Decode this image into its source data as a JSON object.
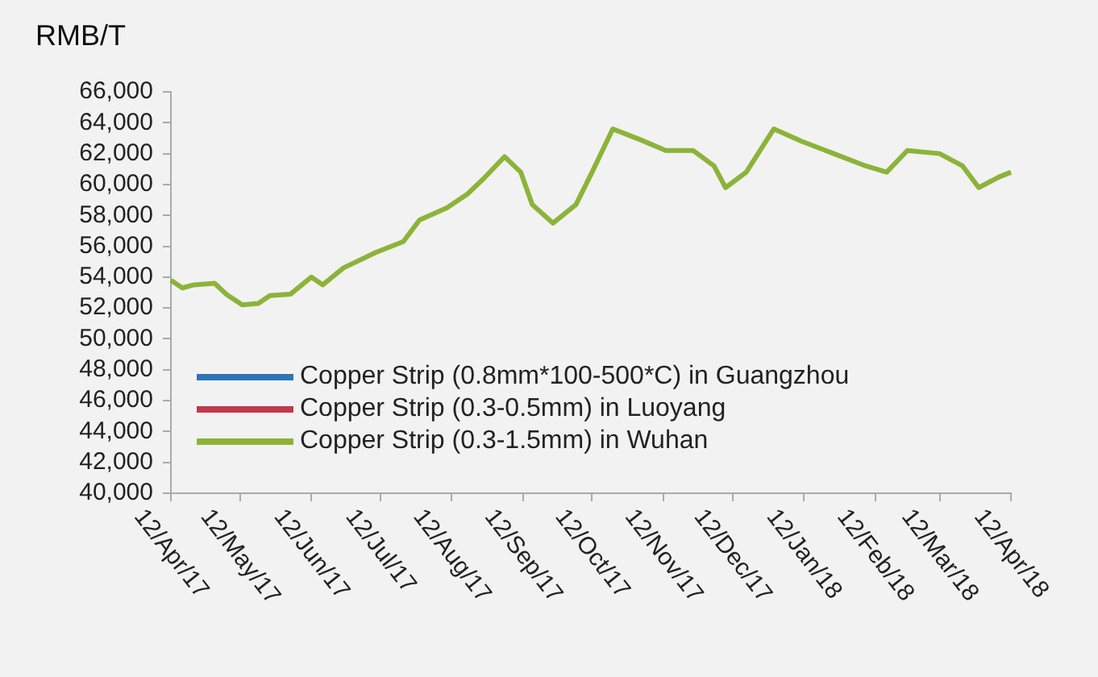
{
  "chart_data": {
    "type": "line",
    "ylabel": "RMB/T",
    "x": [
      "2017-04-12",
      "2017-04-17",
      "2017-04-22",
      "2017-05-01",
      "2017-05-06",
      "2017-05-13",
      "2017-05-20",
      "2017-05-25",
      "2017-06-03",
      "2017-06-12",
      "2017-06-17",
      "2017-06-26",
      "2017-07-10",
      "2017-07-22",
      "2017-07-29",
      "2017-08-10",
      "2017-08-19",
      "2017-08-26",
      "2017-09-04",
      "2017-09-11",
      "2017-09-16",
      "2017-09-25",
      "2017-10-05",
      "2017-10-12",
      "2017-10-21",
      "2017-11-02",
      "2017-11-13",
      "2017-11-25",
      "2017-12-04",
      "2017-12-09",
      "2017-12-18",
      "2017-12-30",
      "2018-01-11",
      "2018-01-25",
      "2018-02-08",
      "2018-02-17",
      "2018-02-26",
      "2018-03-12",
      "2018-03-22",
      "2018-03-29",
      "2018-04-07",
      "2018-04-12"
    ],
    "series": [
      {
        "name": "Copper Strip (0.8mm*100-500*C) in Guangzhou",
        "color": "#2e75b6",
        "values": [
          null,
          null,
          null,
          null,
          null,
          null,
          null,
          null,
          null,
          null,
          null,
          null,
          null,
          null,
          null,
          null,
          null,
          null,
          null,
          null,
          null,
          null,
          null,
          null,
          null,
          null,
          null,
          null,
          null,
          null,
          null,
          null,
          null,
          null,
          null,
          null,
          null,
          null,
          null,
          null,
          null,
          null
        ]
      },
      {
        "name": "Copper Strip (0.3-0.5mm) in Luoyang",
        "color": "#c0394d",
        "values": [
          null,
          null,
          null,
          null,
          null,
          null,
          null,
          null,
          null,
          null,
          null,
          null,
          null,
          null,
          null,
          null,
          null,
          null,
          null,
          null,
          null,
          null,
          null,
          null,
          null,
          null,
          null,
          null,
          null,
          null,
          null,
          null,
          null,
          null,
          null,
          null,
          null,
          null,
          null,
          null,
          null,
          null
        ]
      },
      {
        "name": "Copper Strip (0.3-1.5mm) in Wuhan",
        "color": "#8db33a",
        "values": [
          53800,
          53300,
          53500,
          53600,
          52900,
          52200,
          52300,
          52800,
          52900,
          54000,
          53500,
          54600,
          55600,
          56300,
          57700,
          58500,
          59400,
          60400,
          61800,
          60800,
          58700,
          57500,
          58700,
          60800,
          63600,
          62900,
          62200,
          62200,
          61200,
          59800,
          60800,
          63600,
          62800,
          62000,
          61200,
          60800,
          62200,
          62000,
          61200,
          59800,
          60500,
          60800
        ]
      }
    ],
    "xlim": [
      "2017-04-12",
      "2018-04-12"
    ],
    "xticks": [
      {
        "value": "2017-04-12",
        "label": "12/Apr/17"
      },
      {
        "value": "2017-05-12",
        "label": "12/May/17"
      },
      {
        "value": "2017-06-12",
        "label": "12/Jun/17"
      },
      {
        "value": "2017-07-12",
        "label": "12/Jul/17"
      },
      {
        "value": "2017-08-12",
        "label": "12/Aug/17"
      },
      {
        "value": "2017-09-12",
        "label": "12/Sep/17"
      },
      {
        "value": "2017-10-12",
        "label": "12/Oct/17"
      },
      {
        "value": "2017-11-12",
        "label": "12/Nov/17"
      },
      {
        "value": "2017-12-12",
        "label": "12/Dec/17"
      },
      {
        "value": "2018-01-12",
        "label": "12/Jan/18"
      },
      {
        "value": "2018-02-12",
        "label": "12/Feb/18"
      },
      {
        "value": "2018-03-12",
        "label": "12/Mar/18"
      },
      {
        "value": "2018-04-12",
        "label": "12/Apr/18"
      }
    ],
    "ylim": [
      40000,
      66000
    ],
    "yticks": [
      {
        "value": 40000,
        "label": "40,000"
      },
      {
        "value": 42000,
        "label": "42,000"
      },
      {
        "value": 44000,
        "label": "44,000"
      },
      {
        "value": 46000,
        "label": "46,000"
      },
      {
        "value": 48000,
        "label": "48,000"
      },
      {
        "value": 50000,
        "label": "50,000"
      },
      {
        "value": 52000,
        "label": "52,000"
      },
      {
        "value": 54000,
        "label": "54,000"
      },
      {
        "value": 56000,
        "label": "56,000"
      },
      {
        "value": 58000,
        "label": "58,000"
      },
      {
        "value": 60000,
        "label": "60,000"
      },
      {
        "value": 62000,
        "label": "62,000"
      },
      {
        "value": 64000,
        "label": "64,000"
      },
      {
        "value": 66000,
        "label": "66,000"
      }
    ],
    "grid": false,
    "legend": "bottom left",
    "marker": "none",
    "line_style": "solid"
  }
}
